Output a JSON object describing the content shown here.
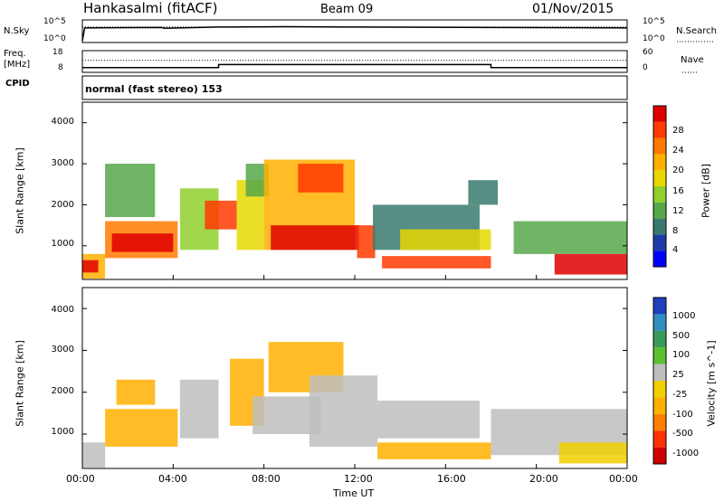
{
  "header": {
    "station": "Hankasalmi (fitACF)",
    "beam": "Beam 09",
    "date": "01/Nov/2015"
  },
  "side_labels": {
    "nsky": "N.Sky",
    "nsearch": "N.Search",
    "freq_line1": "Freq.",
    "freq_line2": "[MHz]",
    "nave": "Nave",
    "cpid": "CPID",
    "cpid_value": "normal (fast stereo) 153"
  },
  "noise_axis": {
    "left_top": "10^5",
    "left_bottom": "10^0",
    "right_top": "10^5",
    "right_bottom": "10^0"
  },
  "freq_axis": {
    "left_top": "18",
    "left_bottom": "8",
    "right_top": "60",
    "right_bottom": "0"
  },
  "range_axis": {
    "label": "Slant Range [km]",
    "ticks": [
      "4000",
      "3000",
      "2000",
      "1000"
    ]
  },
  "time_axis": {
    "label": "Time UT",
    "ticks": [
      "00:00",
      "04:00",
      "08:00",
      "12:00",
      "16:00",
      "20:00",
      "00:00"
    ]
  },
  "power_colorbar": {
    "label": "Power [dB]",
    "ticks": [
      "28",
      "24",
      "20",
      "16",
      "12",
      "8",
      "4"
    ],
    "colors": [
      "#0000ff",
      "#1e3ca8",
      "#3a7a6e",
      "#56a84a",
      "#8fd02e",
      "#e8d800",
      "#ffb000",
      "#ff7a00",
      "#ff3a00",
      "#e00000"
    ]
  },
  "velocity_colorbar": {
    "label": "Velocity [m s^-1]",
    "ticks": [
      "1000",
      "500",
      "100",
      "25",
      "-25",
      "-100",
      "-500",
      "-1000"
    ],
    "colors": [
      "#1f3fbf",
      "#2f8fbf",
      "#3a9a5a",
      "#5ac030",
      "#bebebe",
      "#f0d000",
      "#ffb000",
      "#ff8000",
      "#ff3000",
      "#d00000"
    ]
  },
  "chart_data": [
    {
      "type": "line",
      "title": "Noise",
      "series": [
        {
          "name": "N.Sky",
          "x_hours": [
            0,
            0.1,
            3.5,
            3.6,
            6,
            9,
            12,
            18,
            24
          ],
          "log10_values": [
            0.2,
            3.3,
            3.4,
            3.2,
            3.5,
            3.6,
            3.5,
            3.4,
            3.3
          ]
        },
        {
          "name": "N.Search",
          "x_hours": [
            0,
            24
          ],
          "log10_values": [
            3.3,
            3.3
          ]
        }
      ],
      "ylim_log10": [
        0,
        5
      ]
    },
    {
      "type": "line",
      "title": "Frequency and Nave",
      "series": [
        {
          "name": "Freq. [MHz]",
          "x_hours": [
            0,
            6,
            6,
            18,
            18,
            24
          ],
          "values": [
            10.2,
            10.2,
            11.6,
            11.6,
            10.2,
            10.2
          ]
        },
        {
          "name": "Nave",
          "x_hours": [
            0,
            24
          ],
          "values": [
            33,
            33
          ]
        }
      ],
      "ylim_freq": [
        8,
        18
      ],
      "ylim_nave": [
        0,
        60
      ]
    },
    {
      "type": "heatmap",
      "title": "Power [dB]",
      "xlabel": "Time UT",
      "ylabel": "Slant Range [km]",
      "xlim_hours": [
        0,
        24
      ],
      "ylim_km": [
        180,
        4500
      ],
      "clim": [
        0,
        30
      ],
      "regions": [
        {
          "t0": 0.0,
          "t1": 1.0,
          "r0": 200,
          "r1": 800,
          "value": 20
        },
        {
          "t0": 0.0,
          "t1": 0.7,
          "r0": 350,
          "r1": 650,
          "value": 28
        },
        {
          "t0": 1.0,
          "t1": 4.2,
          "r0": 700,
          "r1": 1600,
          "value": 22
        },
        {
          "t0": 1.3,
          "t1": 4.0,
          "r0": 850,
          "r1": 1300,
          "value": 28
        },
        {
          "t0": 1.0,
          "t1": 3.2,
          "r0": 1700,
          "r1": 3000,
          "value": 10
        },
        {
          "t0": 4.3,
          "t1": 6.0,
          "r0": 900,
          "r1": 2400,
          "value": 14
        },
        {
          "t0": 5.4,
          "t1": 6.8,
          "r0": 1400,
          "r1": 2100,
          "value": 26
        },
        {
          "t0": 6.8,
          "t1": 8.0,
          "r0": 900,
          "r1": 2600,
          "value": 16
        },
        {
          "t0": 7.2,
          "t1": 8.2,
          "r0": 2200,
          "r1": 3000,
          "value": 10
        },
        {
          "t0": 8.0,
          "t1": 12.0,
          "r0": 900,
          "r1": 3100,
          "value": 18
        },
        {
          "t0": 8.3,
          "t1": 12.2,
          "r0": 900,
          "r1": 1500,
          "value": 28
        },
        {
          "t0": 9.5,
          "t1": 11.5,
          "r0": 2300,
          "r1": 3000,
          "value": 24
        },
        {
          "t0": 12.1,
          "t1": 12.9,
          "r0": 700,
          "r1": 1500,
          "value": 26
        },
        {
          "t0": 12.8,
          "t1": 17.5,
          "r0": 900,
          "r1": 2000,
          "value": 8
        },
        {
          "t0": 13.2,
          "t1": 18.0,
          "r0": 450,
          "r1": 750,
          "value": 24
        },
        {
          "t0": 14.0,
          "t1": 18.0,
          "r0": 900,
          "r1": 1400,
          "value": 16
        },
        {
          "t0": 19.0,
          "t1": 24.0,
          "r0": 800,
          "r1": 1600,
          "value": 10
        },
        {
          "t0": 20.8,
          "t1": 24.0,
          "r0": 300,
          "r1": 800,
          "value": 28
        },
        {
          "t0": 17.0,
          "t1": 18.3,
          "r0": 2000,
          "r1": 2600,
          "value": 6
        }
      ]
    },
    {
      "type": "heatmap",
      "title": "Velocity [m s^-1]",
      "xlabel": "Time UT",
      "ylabel": "Slant Range [km]",
      "xlim_hours": [
        0,
        24
      ],
      "ylim_km": [
        180,
        4500
      ],
      "regions": [
        {
          "t0": 0.0,
          "t1": 1.0,
          "r0": 200,
          "r1": 800,
          "value": 0
        },
        {
          "t0": 1.0,
          "t1": 4.2,
          "r0": 700,
          "r1": 1600,
          "value": -200
        },
        {
          "t0": 1.5,
          "t1": 3.2,
          "r0": 1700,
          "r1": 2300,
          "value": -300
        },
        {
          "t0": 4.3,
          "t1": 6.0,
          "r0": 900,
          "r1": 2300,
          "value": 0
        },
        {
          "t0": 6.5,
          "t1": 8.0,
          "r0": 1200,
          "r1": 2800,
          "value": -300
        },
        {
          "t0": 7.5,
          "t1": 10.5,
          "r0": 1000,
          "r1": 1900,
          "value": 0
        },
        {
          "t0": 8.2,
          "t1": 11.5,
          "r0": 2000,
          "r1": 3200,
          "value": -400
        },
        {
          "t0": 10.0,
          "t1": 13.0,
          "r0": 700,
          "r1": 2400,
          "value": 0
        },
        {
          "t0": 13.0,
          "t1": 18.0,
          "r0": 400,
          "r1": 800,
          "value": -400
        },
        {
          "t0": 13.0,
          "t1": 17.5,
          "r0": 900,
          "r1": 1800,
          "value": 0
        },
        {
          "t0": 18.0,
          "t1": 24.0,
          "r0": 500,
          "r1": 1600,
          "value": 0
        },
        {
          "t0": 21.0,
          "t1": 24.0,
          "r0": 300,
          "r1": 800,
          "value": -30
        }
      ]
    }
  ]
}
